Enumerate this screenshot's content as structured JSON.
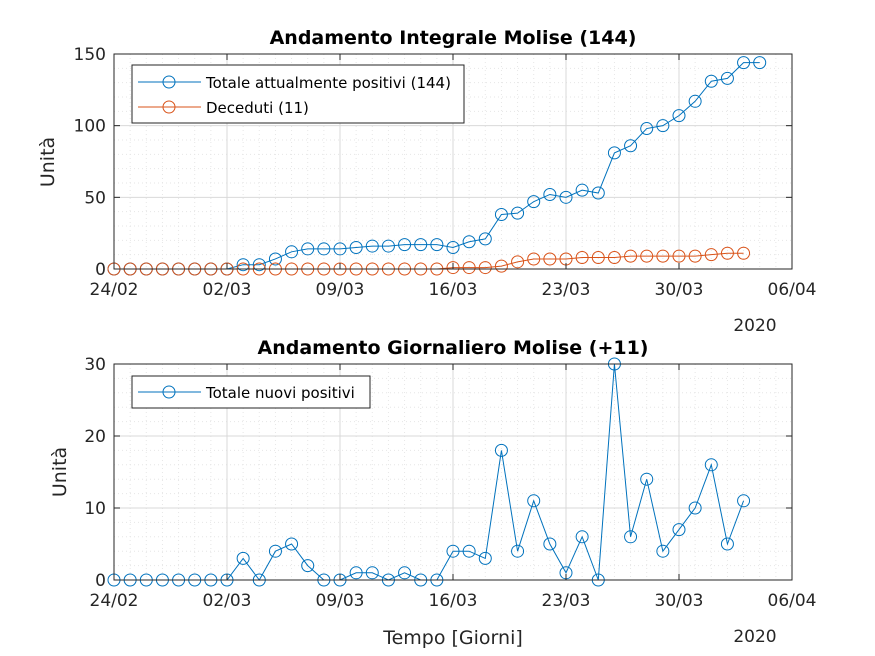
{
  "chart_data": [
    {
      "type": "line",
      "title": "Andamento Integrale Molise (144)",
      "ylabel": "Unità",
      "xlabel": "",
      "year_label": "2020",
      "x_tick_labels": [
        "24/02",
        "02/03",
        "09/03",
        "16/03",
        "23/03",
        "30/03",
        "06/04"
      ],
      "y_ticks": [
        0,
        50,
        100,
        150
      ],
      "ylim": [
        0,
        150
      ],
      "x_start_date": "2020-02-24",
      "grid": true,
      "legend_position": "top-left",
      "series": [
        {
          "name": "Totale attualmente positivi (144)",
          "color": "#0072BD",
          "x": [
            "2020-02-24",
            "2020-02-25",
            "2020-02-26",
            "2020-02-27",
            "2020-02-28",
            "2020-02-29",
            "2020-03-01",
            "2020-03-02",
            "2020-03-03",
            "2020-03-04",
            "2020-03-05",
            "2020-03-06",
            "2020-03-07",
            "2020-03-08",
            "2020-03-09",
            "2020-03-10",
            "2020-03-11",
            "2020-03-12",
            "2020-03-13",
            "2020-03-14",
            "2020-03-15",
            "2020-03-16",
            "2020-03-17",
            "2020-03-18",
            "2020-03-19",
            "2020-03-20",
            "2020-03-21",
            "2020-03-22",
            "2020-03-23",
            "2020-03-24",
            "2020-03-25",
            "2020-03-26",
            "2020-03-27",
            "2020-03-28",
            "2020-03-29",
            "2020-03-30",
            "2020-03-31",
            "2020-04-01",
            "2020-04-02",
            "2020-04-03",
            "2020-04-04"
          ],
          "values": [
            0,
            0,
            0,
            0,
            0,
            0,
            0,
            0,
            3,
            3,
            7,
            12,
            14,
            14,
            14,
            15,
            16,
            16,
            17,
            17,
            17,
            15,
            19,
            21,
            38,
            39,
            47,
            52,
            50,
            55,
            53,
            81,
            86,
            98,
            100,
            107,
            117,
            131,
            133,
            144,
            144
          ]
        },
        {
          "name": "Deceduti (11)",
          "color": "#D95319",
          "x": [
            "2020-02-24",
            "2020-02-25",
            "2020-02-26",
            "2020-02-27",
            "2020-02-28",
            "2020-02-29",
            "2020-03-01",
            "2020-03-02",
            "2020-03-03",
            "2020-03-04",
            "2020-03-05",
            "2020-03-06",
            "2020-03-07",
            "2020-03-08",
            "2020-03-09",
            "2020-03-10",
            "2020-03-11",
            "2020-03-12",
            "2020-03-13",
            "2020-03-14",
            "2020-03-15",
            "2020-03-16",
            "2020-03-17",
            "2020-03-18",
            "2020-03-19",
            "2020-03-20",
            "2020-03-21",
            "2020-03-22",
            "2020-03-23",
            "2020-03-24",
            "2020-03-25",
            "2020-03-26",
            "2020-03-27",
            "2020-03-28",
            "2020-03-29",
            "2020-03-30",
            "2020-03-31",
            "2020-04-01",
            "2020-04-02",
            "2020-04-03"
          ],
          "values": [
            0,
            0,
            0,
            0,
            0,
            0,
            0,
            0,
            0,
            0,
            0,
            0,
            0,
            0,
            0,
            0,
            0,
            0,
            0,
            0,
            0,
            1,
            1,
            1,
            2,
            5,
            7,
            7,
            7,
            8,
            8,
            8,
            9,
            9,
            9,
            9,
            9,
            10,
            11,
            11
          ]
        }
      ]
    },
    {
      "type": "line",
      "title": "Andamento Giornaliero Molise (+11)",
      "ylabel": "Unità",
      "xlabel": "Tempo [Giorni]",
      "year_label": "2020",
      "x_tick_labels": [
        "24/02",
        "02/03",
        "09/03",
        "16/03",
        "23/03",
        "30/03",
        "06/04"
      ],
      "y_ticks": [
        0,
        10,
        20,
        30
      ],
      "ylim": [
        0,
        30
      ],
      "x_start_date": "2020-02-24",
      "grid": true,
      "legend_position": "top-left",
      "series": [
        {
          "name": "Totale nuovi positivi",
          "color": "#0072BD",
          "x": [
            "2020-02-24",
            "2020-02-25",
            "2020-02-26",
            "2020-02-27",
            "2020-02-28",
            "2020-02-29",
            "2020-03-01",
            "2020-03-02",
            "2020-03-03",
            "2020-03-04",
            "2020-03-05",
            "2020-03-06",
            "2020-03-07",
            "2020-03-08",
            "2020-03-09",
            "2020-03-10",
            "2020-03-11",
            "2020-03-12",
            "2020-03-13",
            "2020-03-14",
            "2020-03-15",
            "2020-03-16",
            "2020-03-17",
            "2020-03-18",
            "2020-03-19",
            "2020-03-20",
            "2020-03-21",
            "2020-03-22",
            "2020-03-23",
            "2020-03-24",
            "2020-03-25",
            "2020-03-26",
            "2020-03-27",
            "2020-03-28",
            "2020-03-29",
            "2020-03-30",
            "2020-03-31",
            "2020-04-01",
            "2020-04-02",
            "2020-04-03"
          ],
          "values": [
            0,
            0,
            0,
            0,
            0,
            0,
            0,
            0,
            3,
            0,
            4,
            5,
            2,
            0,
            0,
            1,
            1,
            0,
            1,
            0,
            0,
            4,
            4,
            3,
            18,
            4,
            11,
            5,
            1,
            6,
            0,
            30,
            6,
            14,
            4,
            7,
            10,
            16,
            5,
            11
          ]
        }
      ]
    }
  ]
}
